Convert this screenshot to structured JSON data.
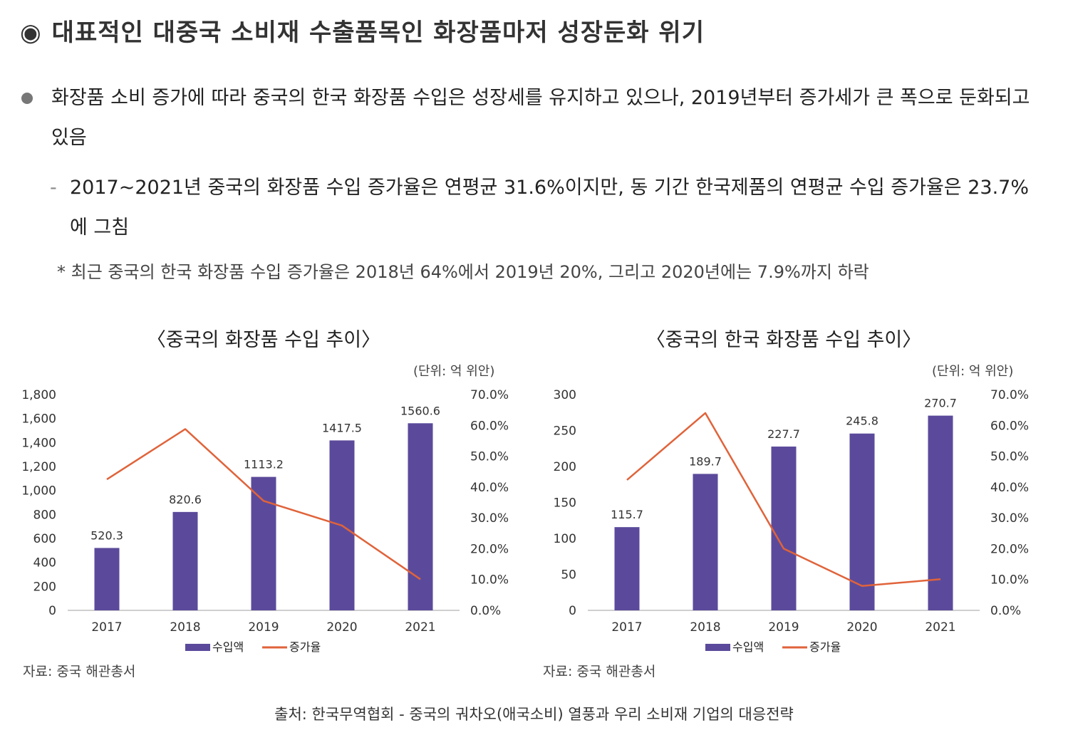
{
  "heading": {
    "mark": "◉",
    "text": "대표적인 대중국 소비재 수출품목인 화장품마저 성장둔화 위기"
  },
  "bullet": {
    "text": "화장품 소비 증가에 따라 중국의 한국 화장품 수입은 성장세를 유지하고 있으나, 2019년부터 증가세가 큰 폭으로 둔화되고 있음"
  },
  "sub": {
    "dash": "-",
    "text": "2017~2021년 중국의 화장품 수입 증가율은 연평균 31.6%이지만, 동 기간 한국제품의 연평균 수입 증가율은 23.7%에 그침"
  },
  "note": "* 최근 중국의 한국 화장품 수입 증가율은 2018년 64%에서 2019년 20%, 그리고 2020년에는 7.9%까지 하락",
  "colors": {
    "bar": "#5b4a9b",
    "line": "#e0633a",
    "axis": "#bfbfbf"
  },
  "footer": "출처: 한국무역협회 - 중국의 궈차오(애국소비) 열풍과 우리 소비재 기업의 대응전략",
  "chart_data": [
    {
      "type": "bar",
      "title": "〈중국의 화장품 수입 추이〉",
      "unit": "(단위: 억 위안)",
      "source": "자료: 중국 해관총서",
      "categories": [
        "2017",
        "2018",
        "2019",
        "2020",
        "2021"
      ],
      "bar_values": [
        520.3,
        820.6,
        1113.2,
        1417.5,
        1560.6
      ],
      "bar_labels": [
        "520.3",
        "820.6",
        "1113.2",
        "1417.5",
        "1560.6"
      ],
      "line_values": [
        42.5,
        58.8,
        35.5,
        27.5,
        10.1
      ],
      "ylim": [
        0,
        1800
      ],
      "y_ticks": [
        "0",
        "200",
        "400",
        "600",
        "800",
        "1,000",
        "1,200",
        "1,400",
        "1,600",
        "1,800"
      ],
      "y2lim": [
        0,
        70
      ],
      "y2_ticks": [
        "0.0%",
        "10.0%",
        "20.0%",
        "30.0%",
        "40.0%",
        "50.0%",
        "60.0%",
        "70.0%"
      ],
      "series": [
        {
          "name": "수입액",
          "kind": "bar"
        },
        {
          "name": "증가율",
          "kind": "line"
        }
      ],
      "legend": "bottom"
    },
    {
      "type": "bar",
      "title": "〈중국의 한국 화장품 수입 추이〉",
      "unit": "(단위: 억 위안)",
      "source": "자료: 중국 해관총서",
      "categories": [
        "2017",
        "2018",
        "2019",
        "2020",
        "2021"
      ],
      "bar_values": [
        115.7,
        189.7,
        227.7,
        245.8,
        270.7
      ],
      "bar_labels": [
        "115.7",
        "189.7",
        "227.7",
        "245.8",
        "270.7"
      ],
      "line_values": [
        42.3,
        64.0,
        20.0,
        7.9,
        10.1
      ],
      "ylim": [
        0,
        300
      ],
      "y_ticks": [
        "0",
        "50",
        "100",
        "150",
        "200",
        "250",
        "300"
      ],
      "y2lim": [
        0,
        70
      ],
      "y2_ticks": [
        "0.0%",
        "10.0%",
        "20.0%",
        "30.0%",
        "40.0%",
        "50.0%",
        "60.0%",
        "70.0%"
      ],
      "series": [
        {
          "name": "수입액",
          "kind": "bar"
        },
        {
          "name": "증가율",
          "kind": "line"
        }
      ],
      "legend": "bottom"
    }
  ]
}
